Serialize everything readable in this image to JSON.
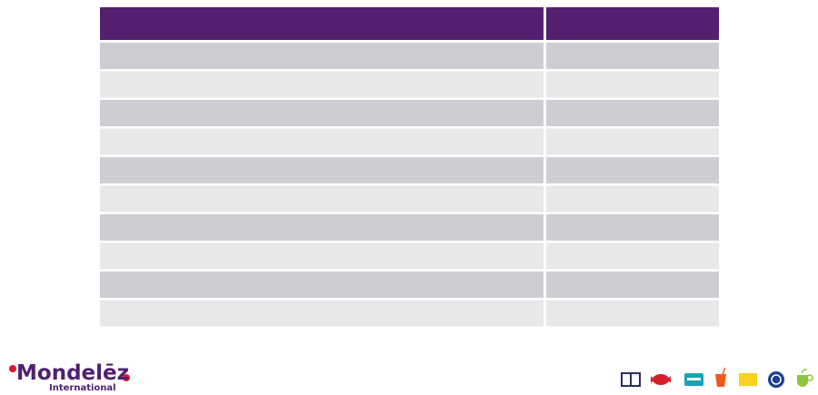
{
  "logo": {
    "name": "Mondelēz",
    "subtitle": "International"
  }
}
